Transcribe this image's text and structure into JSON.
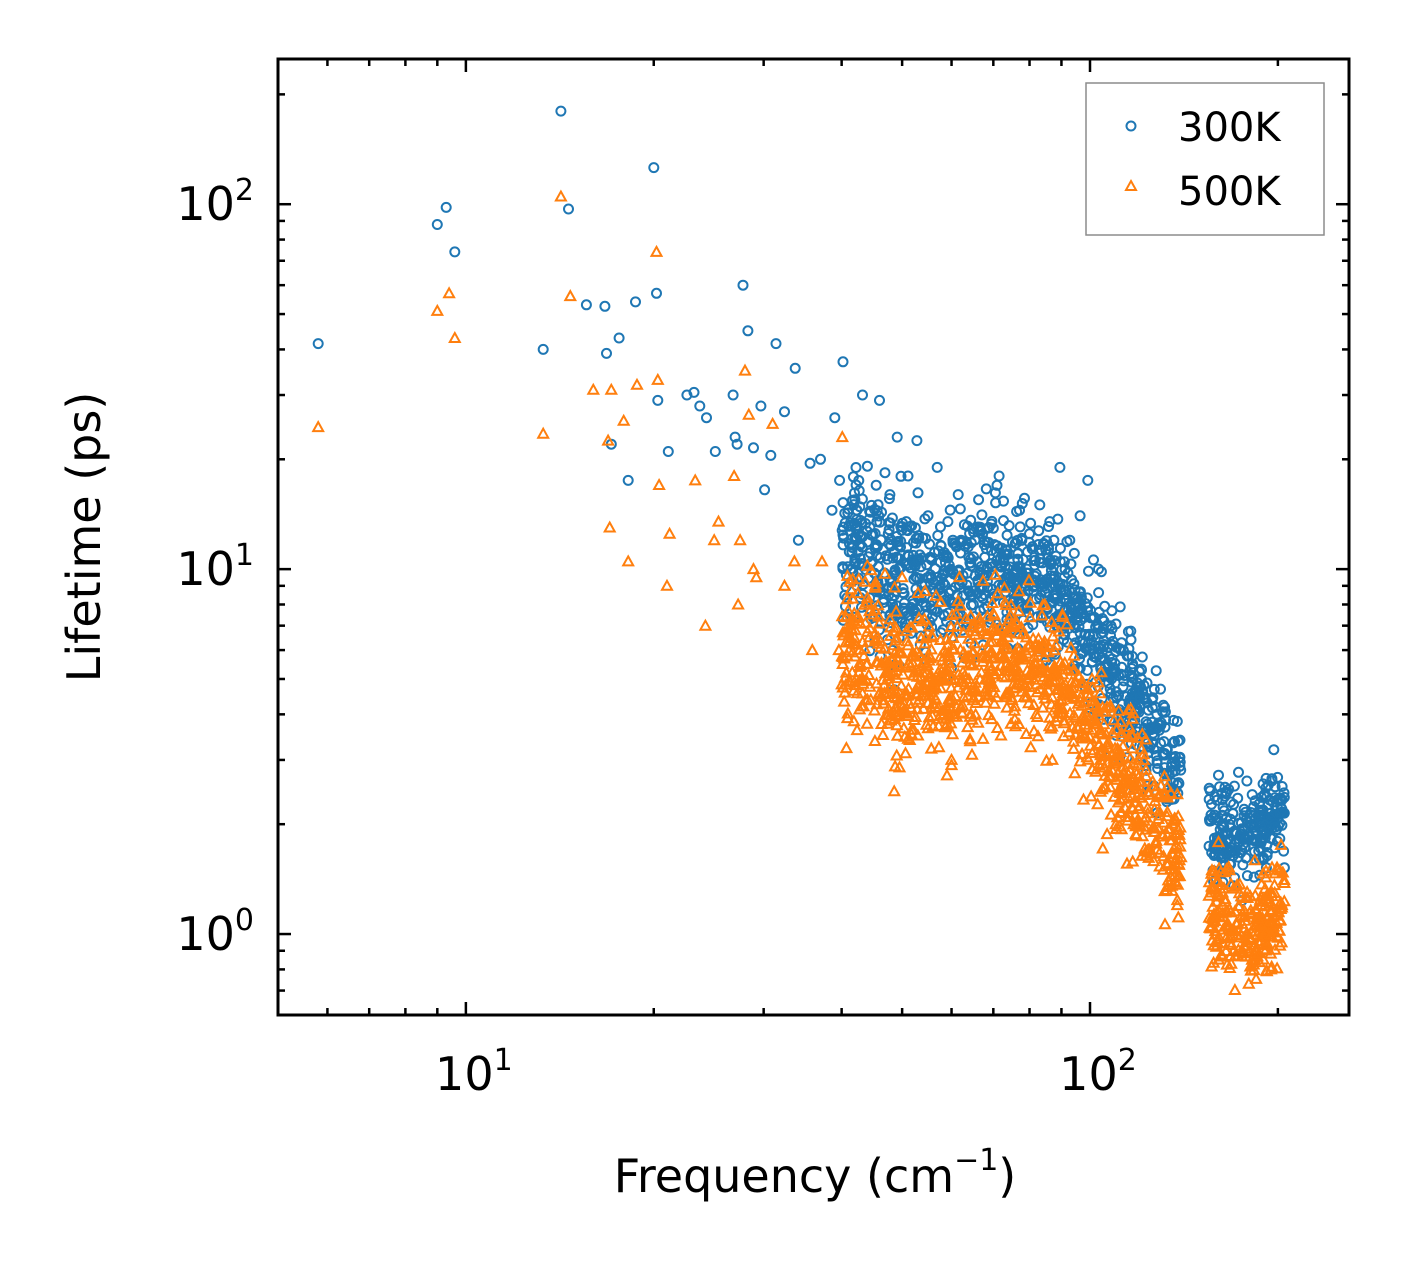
{
  "chart_data": {
    "type": "scatter",
    "xscale": "log",
    "yscale": "log",
    "xlim": [
      5,
      260
    ],
    "ylim": [
      0.6,
      250
    ],
    "xlabel_main": "Frequency (cm",
    "xlabel_sup": "−1",
    "xlabel_tail": ")",
    "ylabel": "Lifetime (ps)",
    "x_ticks": [
      {
        "value": 10,
        "base": "10",
        "exp": "1"
      },
      {
        "value": 100,
        "base": "10",
        "exp": "2"
      }
    ],
    "y_ticks": [
      {
        "value": 1,
        "base": "10",
        "exp": "0"
      },
      {
        "value": 10,
        "base": "10",
        "exp": "1"
      },
      {
        "value": 100,
        "base": "10",
        "exp": "2"
      }
    ],
    "legend_position": "top-right",
    "series": [
      {
        "name": "300K",
        "marker": "circle",
        "color": "#1f77b4",
        "x": [
          5.8,
          9.0,
          9.3,
          9.6,
          13.3,
          14.2,
          14.6,
          15.6,
          16.7,
          16.8,
          17.1,
          17.6,
          18.2,
          18.7,
          20.0,
          20.2,
          20.3,
          21.1,
          22.6,
          23.2,
          23.7,
          24.3,
          25.1,
          26.8,
          27.0,
          27.2,
          27.8,
          28.3,
          28.9,
          29.7,
          30.1,
          30.8,
          31.4,
          32.4,
          33.7,
          34.1,
          35.6,
          37.0,
          38.6,
          39.0,
          39.7,
          40.2,
          42.0,
          43.2,
          44.4,
          46.0,
          47.8,
          49.1,
          51.1,
          52.8,
          55.0,
          56.9,
          59.2,
          61.5,
          63.8,
          66.3,
          68.9,
          71.5,
          74.2,
          77.1,
          80.0,
          83.1,
          86.2,
          89.5,
          92.8,
          96.4,
          99.2,
          103.2,
          108.0,
          112.0,
          117.0,
          122.0,
          128.0,
          133.0,
          136.0,
          163.0,
          168.0,
          175.0,
          183.0,
          190.0,
          197.0,
          203.0
        ],
        "y": [
          41.5,
          88.0,
          98.0,
          74.0,
          40.0,
          180.0,
          97.0,
          53.0,
          52.5,
          39.0,
          22.0,
          43.0,
          17.5,
          54.0,
          126.0,
          57.0,
          29.0,
          21.0,
          30.0,
          30.5,
          28.0,
          26.0,
          21.0,
          30.0,
          23.0,
          22.0,
          60.0,
          45.0,
          21.5,
          28.0,
          16.5,
          20.5,
          41.5,
          27.0,
          35.5,
          12.0,
          19.5,
          20.0,
          14.5,
          26.0,
          17.5,
          37.0,
          15.5,
          30.0,
          13.0,
          29.0,
          16.0,
          23.0,
          18.0,
          22.5,
          14.0,
          19.0,
          13.5,
          16.0,
          11.5,
          15.5,
          13.0,
          18.0,
          11.0,
          14.5,
          12.5,
          15.0,
          13.5,
          19.0,
          12.0,
          14.0,
          17.5,
          10.0,
          7.0,
          6.0,
          5.5,
          4.8,
          4.0,
          3.2,
          2.5,
          2.0,
          2.3,
          1.7,
          2.0,
          2.4,
          3.2,
          2.2
        ],
        "trend": [
          {
            "x": 40,
            "mean": 12.0,
            "spread": 0.55
          },
          {
            "x": 48,
            "mean": 9.5,
            "spread": 0.55
          },
          {
            "x": 55,
            "mean": 9.0,
            "spread": 0.5
          },
          {
            "x": 65,
            "mean": 9.5,
            "spread": 0.45
          },
          {
            "x": 75,
            "mean": 10.0,
            "spread": 0.4
          },
          {
            "x": 88,
            "mean": 9.0,
            "spread": 0.4
          },
          {
            "x": 100,
            "mean": 6.5,
            "spread": 0.4
          },
          {
            "x": 115,
            "mean": 4.5,
            "spread": 0.4
          },
          {
            "x": 135,
            "mean": 3.0,
            "spread": 0.35
          },
          {
            "x": 158,
            "mean": 1.9,
            "spread": 0.3
          },
          {
            "x": 180,
            "mean": 1.9,
            "spread": 0.3
          },
          {
            "x": 205,
            "mean": 2.1,
            "spread": 0.3
          }
        ]
      },
      {
        "name": "500K",
        "marker": "triangle",
        "color": "#ff7f0e",
        "x": [
          5.8,
          9.0,
          9.4,
          9.6,
          13.3,
          14.2,
          14.7,
          16.0,
          16.9,
          17.0,
          17.1,
          17.9,
          18.2,
          18.8,
          20.2,
          20.3,
          20.4,
          21.0,
          21.2,
          23.3,
          24.2,
          25.0,
          25.4,
          26.9,
          27.3,
          27.5,
          28.0,
          28.4,
          28.9,
          29.2,
          31.0,
          32.4,
          33.6,
          35.9,
          37.2,
          39.6,
          40.1,
          43.8,
          45.3,
          47.5,
          50.0,
          53.0,
          56.0,
          60.0,
          64.0,
          68.0,
          72.0,
          77.0,
          82.0,
          87.0,
          92.0,
          98.0,
          104.0,
          110.0,
          117.0,
          124.0,
          131.0,
          138.0,
          163.0,
          170.0,
          178.0,
          186.0,
          195.0,
          203.0
        ],
        "y": [
          24.5,
          51.0,
          57.0,
          43.0,
          23.5,
          105.0,
          56.0,
          31.0,
          22.5,
          13.0,
          31.0,
          25.5,
          10.5,
          32.0,
          74.0,
          33.0,
          17.0,
          9.0,
          12.5,
          17.5,
          7.0,
          12.0,
          13.5,
          18.0,
          8.0,
          12.0,
          35.0,
          26.5,
          10.0,
          9.5,
          25.0,
          9.0,
          10.5,
          6.0,
          10.5,
          6.0,
          23.0,
          5.5,
          9.0,
          4.0,
          9.5,
          3.5,
          6.5,
          3.0,
          5.0,
          4.5,
          3.5,
          6.0,
          4.0,
          3.0,
          4.5,
          3.5,
          3.0,
          2.0,
          2.2,
          1.7,
          1.5,
          1.2,
          1.3,
          0.9,
          1.0,
          1.1,
          0.8,
          1.2
        ],
        "trend": [
          {
            "x": 40,
            "mean": 6.5,
            "spread": 0.55
          },
          {
            "x": 48,
            "mean": 5.0,
            "spread": 0.55
          },
          {
            "x": 55,
            "mean": 4.8,
            "spread": 0.5
          },
          {
            "x": 65,
            "mean": 5.2,
            "spread": 0.45
          },
          {
            "x": 75,
            "mean": 6.0,
            "spread": 0.45
          },
          {
            "x": 88,
            "mean": 5.0,
            "spread": 0.45
          },
          {
            "x": 100,
            "mean": 3.8,
            "spread": 0.45
          },
          {
            "x": 115,
            "mean": 2.6,
            "spread": 0.45
          },
          {
            "x": 135,
            "mean": 1.8,
            "spread": 0.4
          },
          {
            "x": 158,
            "mean": 1.2,
            "spread": 0.35
          },
          {
            "x": 180,
            "mean": 1.0,
            "spread": 0.35
          },
          {
            "x": 205,
            "mean": 1.2,
            "spread": 0.35
          }
        ]
      }
    ]
  }
}
